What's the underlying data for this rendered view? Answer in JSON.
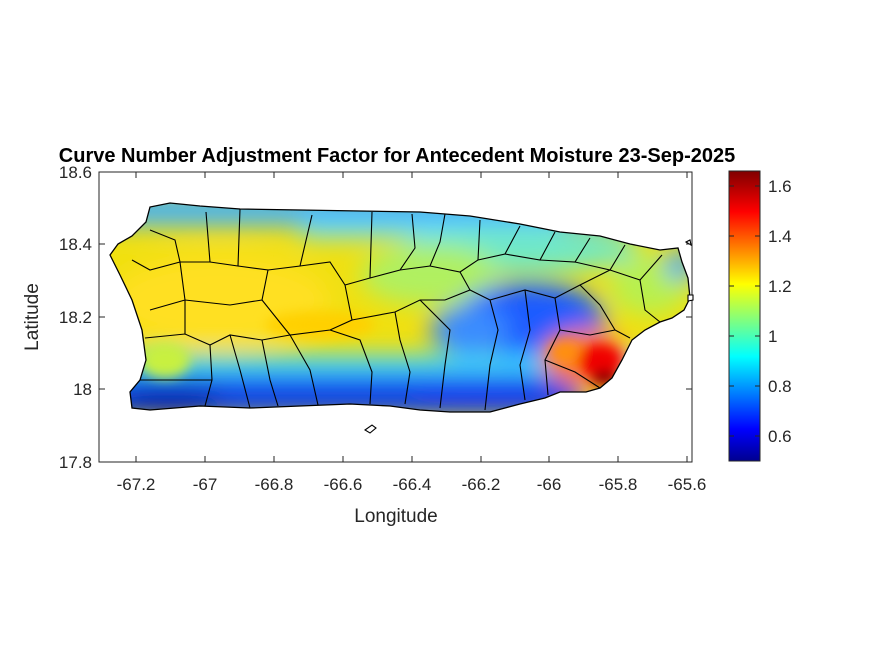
{
  "title": "Curve Number Adjustment Factor for Antecedent Moisture 23-Sep-2025",
  "xlabel": "Longitude",
  "ylabel": "Latitude",
  "xticks": [
    "-67.2",
    "-67",
    "-66.8",
    "-66.6",
    "-66.4",
    "-66.2",
    "-66",
    "-65.8",
    "-65.6"
  ],
  "yticks": [
    "18.6",
    "18.4",
    "18.2",
    "18",
    "17.8"
  ],
  "colorbar": {
    "ticks": [
      "1.6",
      "1.4",
      "1.2",
      "1",
      "0.8",
      "0.6"
    ],
    "range": [
      0.5,
      1.65
    ],
    "colormap": "jet"
  },
  "map_data": {
    "region": "Puerto Rico",
    "type": "raster",
    "lon_range": [
      -67.3,
      -65.58
    ],
    "lat_range": [
      17.8,
      18.6
    ],
    "pattern": [
      {
        "area": "north coast strip",
        "value": 0.9
      },
      {
        "area": "central interior",
        "value": 1.25
      },
      {
        "area": "west interior",
        "value": 1.28
      },
      {
        "area": "east-central interior",
        "value": 0.75
      },
      {
        "area": "southeast corner",
        "value": 1.5
      },
      {
        "area": "south coast strip",
        "value": 0.65
      },
      {
        "area": "east tip",
        "value": 1.1
      }
    ]
  }
}
